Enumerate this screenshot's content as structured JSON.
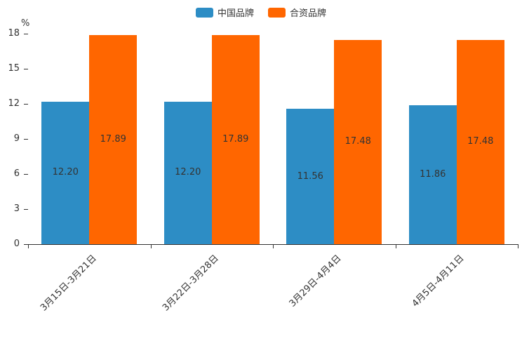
{
  "chart_data": {
    "type": "bar",
    "title": "",
    "ylabel": "%",
    "xlabel": "",
    "ylim": [
      0,
      18
    ],
    "yticks": [
      0,
      3,
      6,
      9,
      12,
      15,
      18
    ],
    "grid": false,
    "legend_position": "top",
    "categories": [
      "3月15日-3月21日",
      "3月22日-3月28日",
      "3月29日-4月4日",
      "4月5日-4月11日"
    ],
    "series": [
      {
        "name": "中国品牌",
        "color": "#2d8dc5",
        "values": [
          12.2,
          12.2,
          11.56,
          11.86
        ],
        "labels": [
          "12.20",
          "12.20",
          "11.56",
          "11.86"
        ]
      },
      {
        "name": "合资品牌",
        "color": "#ff6600",
        "values": [
          17.89,
          17.89,
          17.48,
          17.48
        ],
        "labels": [
          "17.89",
          "17.89",
          "17.48",
          "17.48"
        ]
      }
    ],
    "label_color": "#333333",
    "axis_color": "#333333"
  }
}
